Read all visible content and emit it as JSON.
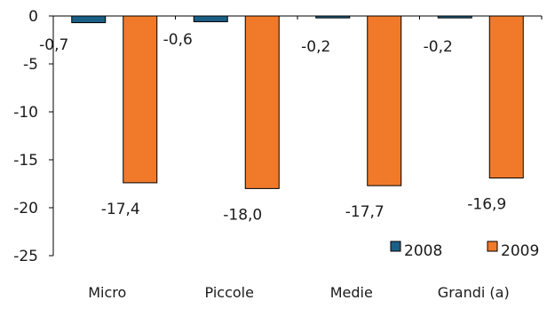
{
  "chart_data": {
    "type": "bar",
    "title": "",
    "xlabel": "",
    "ylabel": "",
    "categories": [
      "Micro",
      "Piccole",
      "Medie",
      "Grandi (a)"
    ],
    "series": [
      {
        "name": "2008",
        "values": [
          -0.7,
          -0.6,
          -0.2,
          -0.2
        ],
        "labels": [
          "-0,7",
          "-0,6",
          "-0,2",
          "-0,2"
        ],
        "color": "#1b5f86"
      },
      {
        "name": "2009",
        "values": [
          -17.4,
          -18.0,
          -17.7,
          -16.9
        ],
        "labels": [
          "-17,4",
          "-18,0",
          "-17,7",
          "-16,9"
        ],
        "color": "#f07a2a"
      }
    ],
    "ylim": [
      -25,
      0
    ],
    "yticks": [
      0,
      -5,
      -10,
      -15,
      -20,
      -25
    ],
    "grid": false,
    "legend_position": "bottom-right",
    "bar_outline_color": "#000000"
  }
}
